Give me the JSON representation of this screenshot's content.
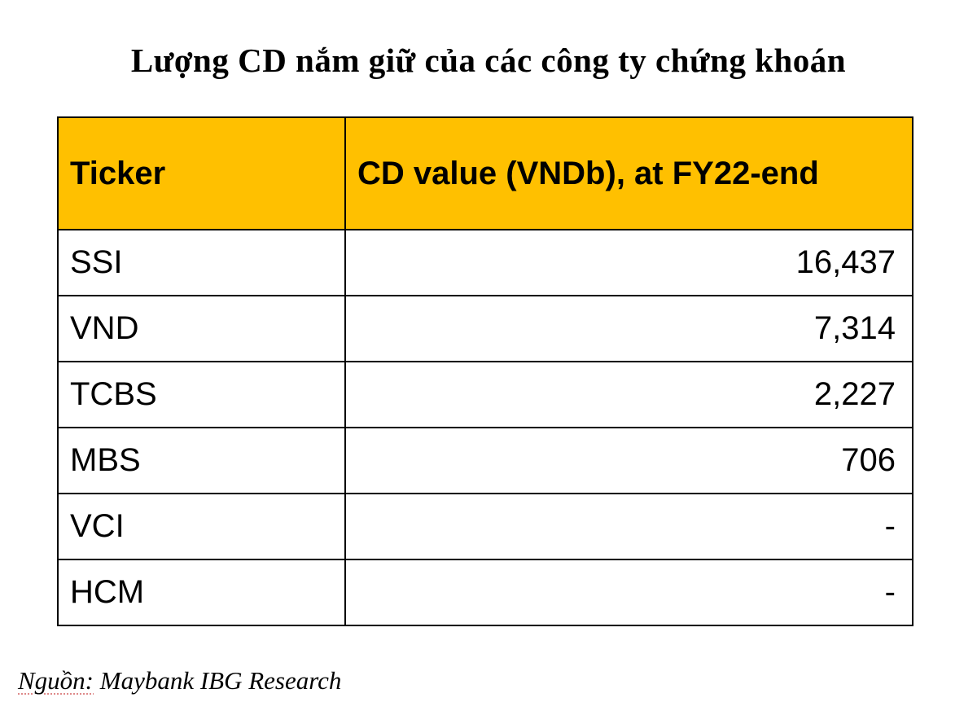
{
  "title": "Lượng CD nắm giữ của các công ty chứng khoán",
  "colors": {
    "header_bg": "#FFC000",
    "border": "#000000",
    "background": "#FFFFFF"
  },
  "source": {
    "prefix": "Nguồn:",
    "text": " Maybank IBG Research",
    "full": "Nguồn: Maybank IBG Research"
  },
  "chart_data": {
    "type": "table",
    "title": "Lượng CD nắm giữ của các công ty chứng khoán",
    "columns": [
      "Ticker",
      "CD value (VNDb), at FY22-end"
    ],
    "rows": [
      [
        "SSI",
        "16,437"
      ],
      [
        "VND",
        "7,314"
      ],
      [
        "TCBS",
        "2,227"
      ],
      [
        "MBS",
        "706"
      ],
      [
        "VCI",
        "-"
      ],
      [
        "HCM",
        "-"
      ]
    ],
    "source": "Nguồn: Maybank IBG Research",
    "legend": false,
    "grid": true
  }
}
